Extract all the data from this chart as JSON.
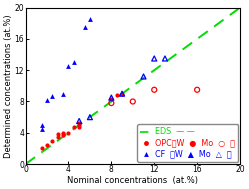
{
  "xlim": [
    0,
    20
  ],
  "ylim": [
    0,
    20
  ],
  "xlabel": "Nominal concentrations  (at.%)",
  "ylabel": "Determined concentrations (at.%)",
  "xlabel_fontsize": 6.0,
  "ylabel_fontsize": 6.0,
  "tick_fontsize": 5.5,
  "legend_fontsize": 5.8,
  "dashed_line_color": "#00dd00",
  "opc_W": [
    [
      1.5,
      2.0
    ],
    [
      2.0,
      2.5
    ],
    [
      2.5,
      3.0
    ],
    [
      3.0,
      3.5
    ],
    [
      3.0,
      3.8
    ],
    [
      3.5,
      3.7
    ],
    [
      3.5,
      4.0
    ],
    [
      4.0,
      4.0
    ],
    [
      4.5,
      4.8
    ],
    [
      5.0,
      5.0
    ],
    [
      5.0,
      5.2
    ],
    [
      5.0,
      4.8
    ],
    [
      8.0,
      8.3
    ],
    [
      8.5,
      8.8
    ],
    [
      9.0,
      9.0
    ]
  ],
  "opc_Mo": [
    [
      8.0,
      7.8
    ],
    [
      10.0,
      8.0
    ],
    [
      12.0,
      9.5
    ],
    [
      16.0,
      9.5
    ]
  ],
  "cf_W": [
    [
      1.5,
      4.5
    ],
    [
      1.5,
      5.0
    ],
    [
      2.0,
      8.2
    ],
    [
      2.5,
      8.7
    ],
    [
      3.5,
      9.0
    ],
    [
      4.0,
      12.5
    ],
    [
      4.5,
      13.0
    ],
    [
      5.5,
      17.5
    ],
    [
      6.0,
      18.5
    ]
  ],
  "cf_Mo": [
    [
      5.0,
      5.5
    ],
    [
      6.0,
      6.0
    ],
    [
      8.0,
      8.5
    ],
    [
      9.0,
      9.0
    ],
    [
      11.0,
      11.2
    ],
    [
      12.0,
      13.5
    ],
    [
      13.0,
      13.5
    ]
  ],
  "opc_color": "#ff0000",
  "cf_color": "#0000ff",
  "xticks": [
    0,
    4,
    8,
    12,
    16,
    20
  ],
  "yticks": [
    0,
    4,
    8,
    12,
    16,
    20
  ]
}
